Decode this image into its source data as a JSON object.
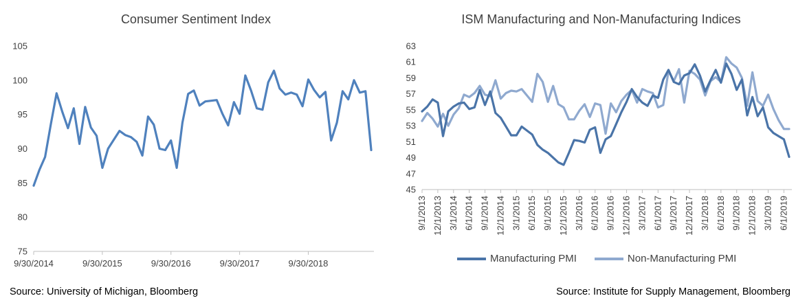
{
  "chart_data": [
    {
      "type": "line",
      "title": "Consumer Sentiment Index",
      "source": "Source:  University of Michigan, Bloomberg",
      "ylim": [
        75,
        105
      ],
      "yticks": [
        75,
        80,
        85,
        90,
        95,
        100,
        105
      ],
      "grid": false,
      "xtick_labels": [
        "9/30/2014",
        "9/30/2015",
        "9/30/2016",
        "9/30/2017",
        "9/30/2018"
      ],
      "xtick_index": [
        0,
        12,
        24,
        36,
        48
      ],
      "series": [
        {
          "name": "",
          "color": "#4f81bd",
          "values": [
            84.6,
            86.9,
            88.8,
            93.6,
            98.1,
            95.4,
            93.0,
            95.9,
            90.7,
            96.1,
            93.1,
            91.9,
            87.2,
            90.0,
            91.3,
            92.6,
            92.0,
            91.7,
            91.0,
            89.0,
            94.7,
            93.5,
            90.0,
            89.8,
            91.2,
            87.2,
            93.8,
            98.0,
            98.5,
            96.3,
            96.9,
            97.0,
            97.1,
            95.1,
            93.4,
            96.8,
            95.1,
            100.7,
            98.5,
            95.9,
            95.7,
            99.7,
            101.4,
            98.8,
            97.9,
            98.2,
            97.9,
            96.2,
            100.1,
            98.6,
            97.5,
            98.3,
            91.2,
            93.8,
            98.4,
            97.2,
            100.0,
            98.2,
            98.4,
            89.8
          ]
        }
      ]
    },
    {
      "type": "line",
      "title": "ISM Manufacturing and Non-Manufacturing Indices",
      "source": "Source:  Institute for Supply Management, Bloomberg",
      "ylim": [
        45,
        63
      ],
      "yticks": [
        45,
        47,
        49,
        51,
        53,
        55,
        57,
        59,
        61,
        63
      ],
      "grid": false,
      "legend": "bottom",
      "xtick_labels": [
        "9/1/2013",
        "12/1/2013",
        "3/1/2014",
        "6/1/2014",
        "9/1/2014",
        "12/1/2014",
        "3/1/2015",
        "6/1/2015",
        "9/1/2015",
        "12/1/2015",
        "3/1/2016",
        "6/1/2016",
        "9/1/2016",
        "12/1/2016",
        "3/1/2017",
        "6/1/2017",
        "9/1/2017",
        "12/1/2017",
        "3/1/2018",
        "6/1/2018",
        "9/1/2018",
        "12/1/2018",
        "3/1/2019",
        "6/1/2019"
      ],
      "xtick_index": [
        0,
        3,
        6,
        9,
        12,
        15,
        18,
        21,
        24,
        27,
        30,
        33,
        36,
        39,
        42,
        45,
        48,
        51,
        54,
        57,
        60,
        63,
        66,
        69
      ],
      "series": [
        {
          "name": "Manufacturing PMI",
          "color": "#4a74a8",
          "values": [
            54.8,
            55.4,
            56.3,
            55.9,
            51.7,
            54.8,
            55.4,
            55.8,
            55.9,
            55.1,
            55.3,
            57.5,
            55.6,
            57.3,
            54.6,
            54.0,
            52.9,
            51.8,
            51.8,
            52.9,
            52.4,
            51.9,
            50.6,
            50.0,
            49.6,
            49.0,
            48.4,
            48.1,
            49.6,
            51.2,
            51.1,
            50.9,
            52.5,
            52.8,
            49.6,
            51.3,
            51.7,
            53.2,
            54.7,
            56.0,
            57.6,
            56.6,
            55.9,
            55.5,
            56.8,
            56.5,
            58.8,
            60.0,
            58.5,
            58.2,
            59.3,
            59.6,
            60.7,
            59.3,
            57.3,
            58.7,
            60.0,
            58.4,
            60.8,
            59.5,
            57.5,
            58.8,
            54.3,
            56.6,
            54.2,
            55.3,
            52.8,
            52.1,
            51.7,
            51.3,
            49.1
          ]
        },
        {
          "name": "Non-Manufacturing PMI",
          "color": "#8fa9cf",
          "values": [
            53.6,
            54.6,
            53.9,
            52.9,
            54.5,
            53.0,
            54.4,
            55.2,
            56.9,
            56.6,
            57.1,
            58.0,
            56.9,
            56.7,
            58.7,
            56.4,
            57.1,
            57.4,
            57.3,
            57.6,
            56.8,
            56.0,
            59.5,
            58.5,
            56.0,
            58.0,
            55.7,
            55.3,
            53.8,
            53.8,
            54.9,
            55.7,
            54.1,
            55.8,
            55.6,
            52.0,
            55.8,
            54.7,
            56.1,
            56.9,
            57.5,
            55.9,
            57.6,
            57.3,
            57.1,
            55.3,
            55.6,
            59.9,
            58.6,
            60.1,
            55.9,
            59.9,
            59.5,
            58.8,
            56.8,
            58.6,
            59.1,
            58.5,
            61.6,
            60.8,
            60.3,
            59.0,
            55.5,
            59.7,
            56.1,
            55.5,
            56.9,
            55.1,
            53.7,
            52.6,
            52.6
          ]
        }
      ]
    }
  ]
}
